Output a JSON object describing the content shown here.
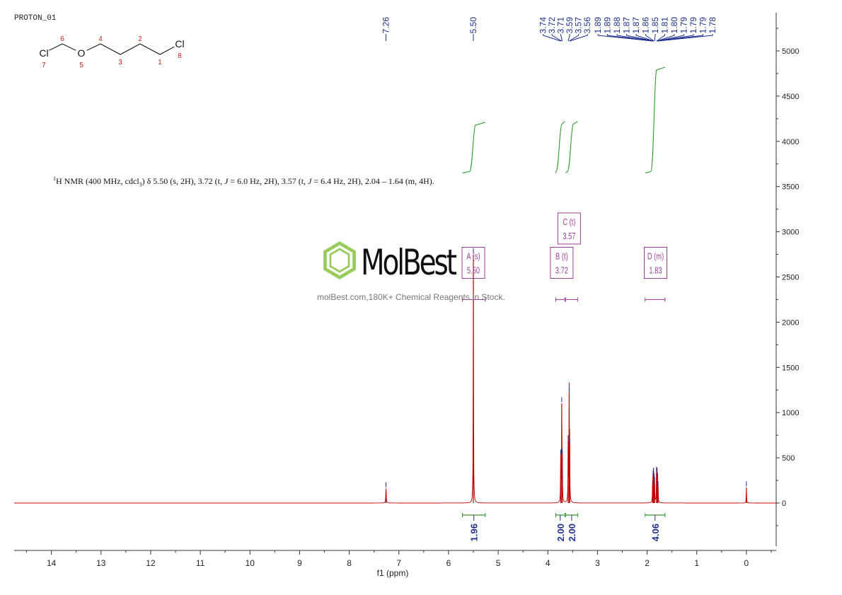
{
  "sample": "PROTON_01",
  "description": {
    "nucleus_sup": "1",
    "main_a": "H NMR (400 MHz, cdcl",
    "sub3": "3",
    "main_b": ") δ 5.50 (s, 2H), 3.72 (t, ",
    "J": "J",
    "main_c": " = 6.0 Hz, 2H), 3.57 (t, ",
    "J2": "J",
    "main_d": " = 6.4 Hz, 2H), 2.04 – 1.64 (m, 4H)."
  },
  "watermark": {
    "brand": "MolBest",
    "tagline": "molBest.com,180K+ Chemical Reagents In Stock."
  },
  "molecule": {
    "atoms": [
      {
        "symbol": "Cl",
        "num": "7"
      },
      {
        "symbol": "",
        "num": "6"
      },
      {
        "symbol": "O",
        "num": "5"
      },
      {
        "symbol": "",
        "num": "4"
      },
      {
        "symbol": "",
        "num": "3"
      },
      {
        "symbol": "",
        "num": "2"
      },
      {
        "symbol": "",
        "num": "1"
      },
      {
        "symbol": "Cl",
        "num": "8"
      }
    ]
  },
  "chart_data": {
    "type": "line",
    "xlabel": "f1 (ppm)",
    "x_ticks": [
      14,
      13,
      12,
      11,
      10,
      9,
      8,
      7,
      6,
      5,
      4,
      3,
      2,
      1,
      0
    ],
    "xlim": [
      14.75,
      -0.6
    ],
    "ylim": [
      -500,
      5400
    ],
    "y_ticks": [
      5000,
      4500,
      4000,
      3500,
      3000,
      2500,
      2000,
      1500,
      1000,
      500,
      0
    ],
    "peaks": [
      {
        "ppm": 7.26,
        "height": 160,
        "width": 0.006
      },
      {
        "ppm": 5.5,
        "height": 2750,
        "width": 0.004
      },
      {
        "ppm": 3.74,
        "height": 520,
        "width": 0.004
      },
      {
        "ppm": 3.72,
        "height": 1100,
        "width": 0.004
      },
      {
        "ppm": 3.71,
        "height": 530,
        "width": 0.004
      },
      {
        "ppm": 3.59,
        "height": 680,
        "width": 0.004
      },
      {
        "ppm": 3.57,
        "height": 1220,
        "width": 0.004
      },
      {
        "ppm": 3.56,
        "height": 640,
        "width": 0.004
      },
      {
        "ppm": 1.89,
        "height": 180,
        "width": 0.004
      },
      {
        "ppm": 1.88,
        "height": 290,
        "width": 0.004
      },
      {
        "ppm": 1.87,
        "height": 320,
        "width": 0.004
      },
      {
        "ppm": 1.86,
        "height": 250,
        "width": 0.004
      },
      {
        "ppm": 1.85,
        "height": 220,
        "width": 0.004
      },
      {
        "ppm": 1.81,
        "height": 330,
        "width": 0.004
      },
      {
        "ppm": 1.8,
        "height": 300,
        "width": 0.004
      },
      {
        "ppm": 1.79,
        "height": 260,
        "width": 0.004
      },
      {
        "ppm": 1.78,
        "height": 170,
        "width": 0.004
      },
      {
        "ppm": 0.0,
        "height": 170,
        "width": 0.004
      }
    ],
    "peak_labels": [
      "7.26",
      "5.50",
      "3.74",
      "3.72",
      "3.71",
      "3.59",
      "3.57",
      "3.56",
      "1.89",
      "1.89",
      "1.88",
      "1.87",
      "1.87",
      "1.86",
      "1.85",
      "1.81",
      "1.80",
      "1.79",
      "1.79",
      "1.79",
      "1.78"
    ],
    "peak_label_ppm": [
      7.26,
      5.5,
      3.74,
      3.72,
      3.71,
      3.59,
      3.57,
      3.56,
      1.89,
      1.89,
      1.88,
      1.87,
      1.87,
      1.86,
      1.85,
      1.81,
      1.8,
      1.79,
      1.79,
      1.79,
      1.78
    ],
    "integrals": [
      {
        "from": 5.72,
        "to": 5.26,
        "value": "1.96",
        "y_start": 3650,
        "y_end": 4210
      },
      {
        "from": 3.84,
        "to": 3.66,
        "value": "2.00",
        "y_start": 3650,
        "y_end": 4220
      },
      {
        "from": 3.64,
        "to": 3.4,
        "value": "2.00",
        "y_start": 3650,
        "y_end": 4220
      },
      {
        "from": 2.04,
        "to": 1.64,
        "value": "4.06",
        "y_start": 3650,
        "y_end": 4820
      }
    ],
    "multiplets": [
      {
        "letter": "A (s)",
        "shift": "5.50",
        "ppm": 5.5,
        "range": [
          5.72,
          5.26
        ],
        "level": 2500
      },
      {
        "letter": "B (t)",
        "shift": "3.72",
        "ppm": 3.72,
        "range": [
          3.84,
          3.66
        ],
        "level": 2500
      },
      {
        "letter": "C (t)",
        "shift": "3.57",
        "ppm": 3.57,
        "range": [
          3.64,
          3.4
        ],
        "level": 2880
      },
      {
        "letter": "D (m)",
        "shift": "1.83",
        "ppm": 1.83,
        "range": [
          2.04,
          1.64
        ],
        "level": 2500
      }
    ],
    "colors": {
      "spectrum": "#c00000",
      "integral": "#2e9a2e",
      "annotation": "#9b3d9b",
      "peak_label": "#1f2f8f",
      "axis": "#333333"
    }
  }
}
